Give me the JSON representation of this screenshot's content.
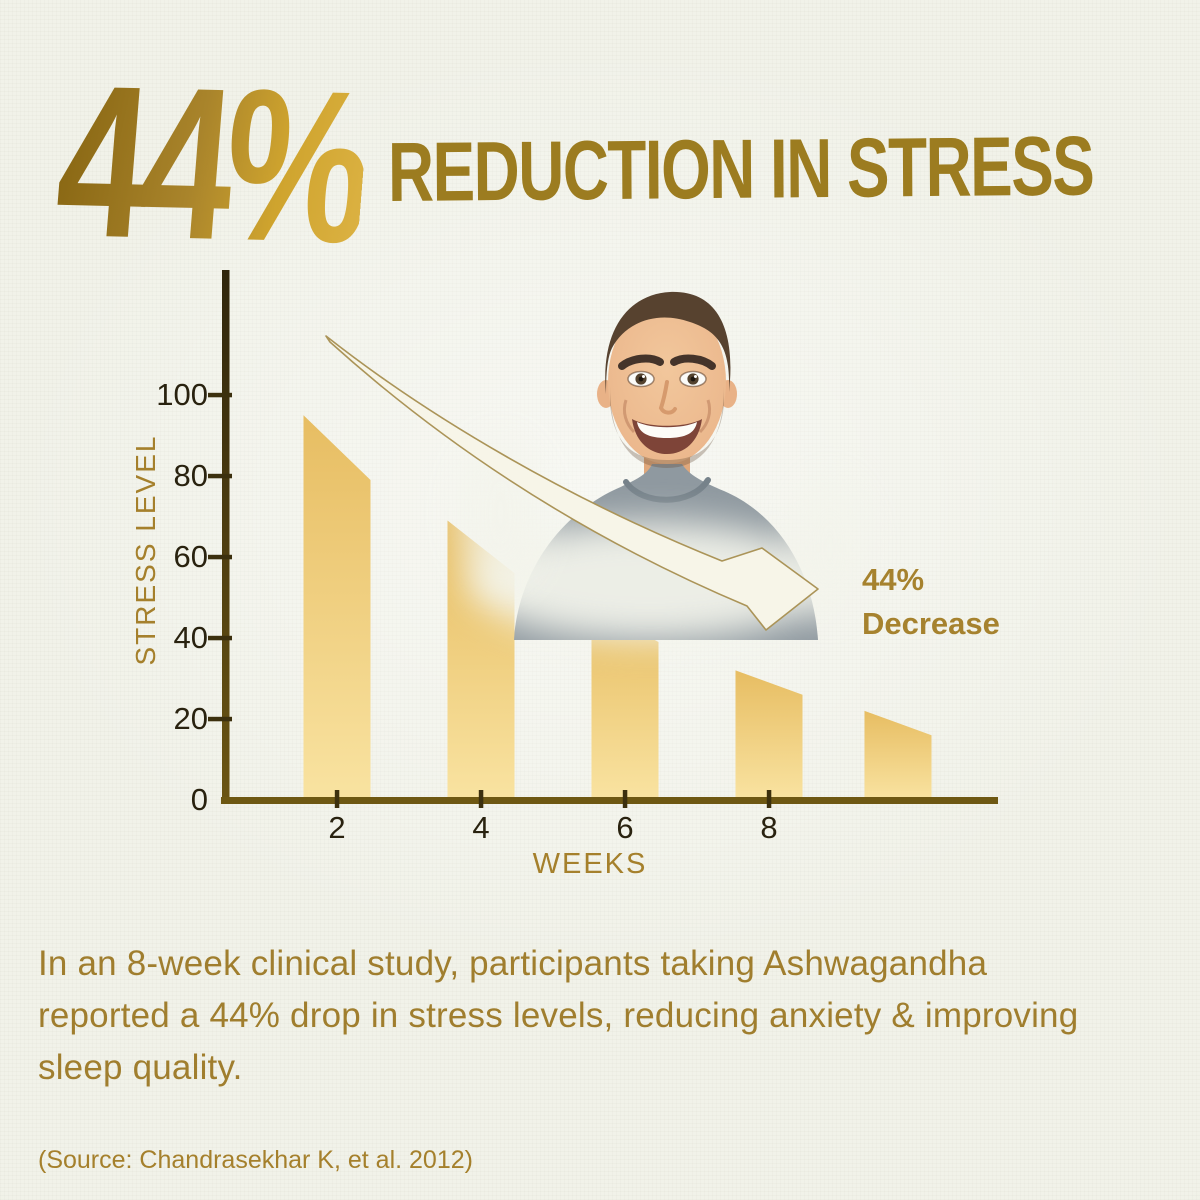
{
  "page": {
    "background_color": "#F1F2E9",
    "accent_gold": "#A5802C",
    "headline_gradient": [
      "#8A6814",
      "#DCB243"
    ],
    "axis_color": "#6E5813"
  },
  "header": {
    "stat_value": "44%",
    "title": "REDUCTION IN STRESS"
  },
  "chart_data": {
    "type": "bar",
    "title": "",
    "xlabel": "WEEKS",
    "ylabel": "STRESS LEVEL",
    "x_ticks": [
      2,
      4,
      6,
      8
    ],
    "y_ticks": [
      0,
      20,
      40,
      60,
      80,
      100
    ],
    "ylim": [
      0,
      115
    ],
    "grid": false,
    "legend": "none",
    "bar_style": "parallelogram with downward-slanted top",
    "bars": [
      {
        "week": 2,
        "value_start": 95,
        "value_end": 79
      },
      {
        "week": 4,
        "value_start": 69,
        "value_end": 56
      },
      {
        "week": 6,
        "value_start": 48,
        "value_end": 39
      },
      {
        "week": 8,
        "value_start": 32,
        "value_end": 26
      },
      {
        "week": 10,
        "value_start": 22,
        "value_end": 16
      }
    ],
    "bar_color_top": "#E7BD62",
    "bar_color_bottom": "#F9E3A1",
    "annotation": {
      "line1": "44%",
      "line2": "Decrease"
    }
  },
  "figure": {
    "description": "smiling man with short brown hair wearing a gray t-shirt",
    "arrow": "cream curved ribbon arrow sweeping down to the right"
  },
  "body": {
    "lines": [
      "In an 8-week clinical study, participants taking Ashwagandha",
      "reported a 44% drop in stress levels, reducing anxiety & improving",
      "sleep quality."
    ],
    "source": "(Source: Chandrasekhar K, et al. 2012)"
  }
}
